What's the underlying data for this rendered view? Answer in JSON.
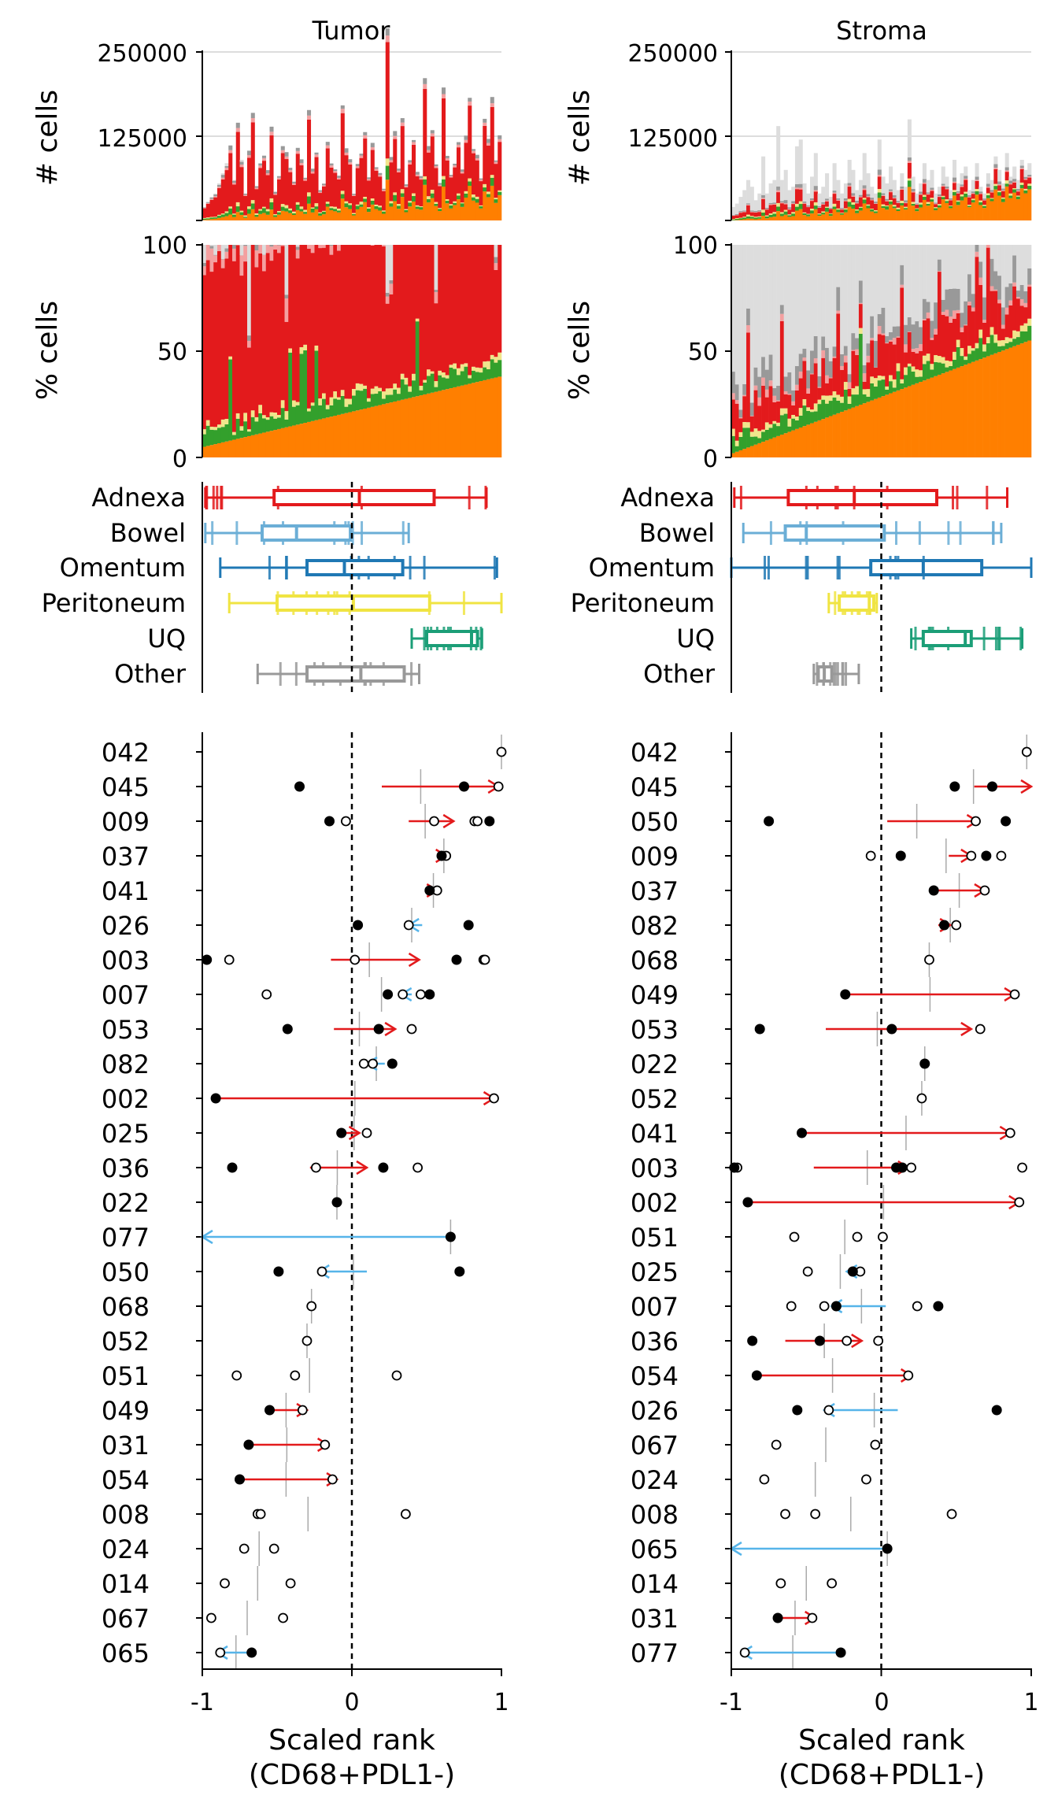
{
  "panels": [
    {
      "title": "Tumor"
    },
    {
      "title": "Stroma"
    }
  ],
  "colors": {
    "Adnexa": "#e31a1c",
    "Bowel": "#6baed6",
    "Omentum": "#1f78b4",
    "Peritoneum": "#f0e442",
    "UQ": "#1b9e77",
    "Other": "#999999",
    "bar_orange": "#ff7f00",
    "bar_green": "#33a02c",
    "bar_yellow": "#f0e68c",
    "bar_red": "#e31a1c",
    "bar_pink": "#f4a0a0",
    "bar_darkgray": "#999999",
    "bar_lightgray": "#dddddd",
    "arrow_up": "#e31a1c",
    "arrow_down": "#56b4e9"
  },
  "chart_data": [
    {
      "type": "bar",
      "panel": "Tumor",
      "ylabel": "# cells",
      "ylim": [
        0,
        250000
      ],
      "yticks": [
        "250000",
        "125000"
      ],
      "n_bars": 80,
      "note_values": "stacked bar counts per sample; ordered by % orange",
      "max_values": [
        20000,
        28000,
        35000,
        40000,
        55000,
        70000,
        85000,
        110000,
        60000,
        145000,
        90000,
        40000,
        100000,
        160000,
        50000,
        85000,
        95000,
        70000,
        130000,
        40000,
        65000,
        105000,
        95000,
        75000,
        55000,
        100000,
        85000,
        60000,
        150000,
        70000,
        95000,
        40000,
        50000,
        110000,
        80000,
        70000,
        60000,
        160000,
        95000,
        80000,
        35000,
        75000,
        90000,
        120000,
        55000,
        100000,
        70000,
        60000,
        40000,
        240000,
        80000,
        110000,
        65000,
        130000,
        45000,
        75000,
        100000,
        60000,
        55000,
        180000,
        90000,
        110000,
        70000,
        45000,
        160000,
        80000,
        55000,
        70000,
        95000,
        60000,
        100000,
        150000,
        85000,
        75000,
        50000,
        120000,
        95000,
        140000,
        70000,
        100000
      ]
    },
    {
      "type": "bar",
      "panel": "Stroma",
      "ylabel": "# cells",
      "ylim": [
        0,
        250000
      ],
      "yticks": [
        "250000",
        "125000"
      ],
      "n_bars": 80,
      "max_values": [
        20000,
        25000,
        35000,
        45000,
        60000,
        50000,
        30000,
        40000,
        95000,
        40000,
        55000,
        60000,
        140000,
        60000,
        75000,
        45000,
        50000,
        110000,
        120000,
        55000,
        40000,
        65000,
        100000,
        40000,
        50000,
        70000,
        35000,
        85000,
        60000,
        40000,
        55000,
        90000,
        75000,
        45000,
        60000,
        100000,
        70000,
        50000,
        40000,
        120000,
        65000,
        55000,
        80000,
        60000,
        45000,
        70000,
        50000,
        150000,
        65000,
        40000,
        55000,
        85000,
        60000,
        75000,
        40000,
        50000,
        80000,
        65000,
        45000,
        90000,
        55000,
        70000,
        80000,
        45000,
        60000,
        85000,
        50000,
        40000,
        70000,
        60000,
        95000,
        75000,
        55000,
        100000,
        65000,
        80000,
        60000,
        90000,
        75000,
        85000
      ]
    },
    {
      "type": "bar",
      "panel": "Tumor",
      "ylabel": "% cells",
      "ylim": [
        0,
        100
      ],
      "yticks": [
        "100",
        "50",
        "0"
      ],
      "n_bars": 80,
      "orange_pct_start": 5,
      "orange_pct_end": 38,
      "red_pct_mean": 75
    },
    {
      "type": "bar",
      "panel": "Stroma",
      "ylabel": "% cells",
      "ylim": [
        0,
        100
      ],
      "yticks": [
        "100",
        "50",
        "0"
      ],
      "n_bars": 80,
      "orange_pct_start": 2,
      "orange_pct_end": 55,
      "red_pct_mean": 12
    },
    {
      "type": "box",
      "panel": "Tumor",
      "categories": [
        "Adnexa",
        "Bowel",
        "Omentum",
        "Peritoneum",
        "UQ",
        "Other"
      ],
      "xlim": [
        -1,
        1
      ],
      "boxes": [
        {
          "name": "Adnexa",
          "whisker_low": -0.98,
          "q1": -0.52,
          "median": 0.05,
          "q3": 0.55,
          "whisker_high": 0.9
        },
        {
          "name": "Bowel",
          "whisker_low": -0.98,
          "q1": -0.6,
          "median": -0.37,
          "q3": -0.01,
          "whisker_high": 0.38
        },
        {
          "name": "Omentum",
          "whisker_low": -0.88,
          "q1": -0.3,
          "median": -0.05,
          "q3": 0.34,
          "whisker_high": 0.97
        },
        {
          "name": "Peritoneum",
          "whisker_low": -0.82,
          "q1": -0.5,
          "median": 0.01,
          "q3": 0.52,
          "whisker_high": 1.0
        },
        {
          "name": "UQ",
          "whisker_low": 0.4,
          "q1": 0.5,
          "median": 0.8,
          "q3": 0.84,
          "whisker_high": 0.87
        },
        {
          "name": "Other",
          "whisker_low": -0.63,
          "q1": -0.3,
          "median": 0.06,
          "q3": 0.35,
          "whisker_high": 0.45
        }
      ]
    },
    {
      "type": "box",
      "panel": "Stroma",
      "categories": [
        "Adnexa",
        "Bowel",
        "Omentum",
        "Peritoneum",
        "UQ",
        "Other"
      ],
      "xlim": [
        -1,
        1
      ],
      "boxes": [
        {
          "name": "Adnexa",
          "whisker_low": -0.98,
          "q1": -0.62,
          "median": -0.18,
          "q3": 0.37,
          "whisker_high": 0.84
        },
        {
          "name": "Bowel",
          "whisker_low": -0.92,
          "q1": -0.64,
          "median": -0.5,
          "q3": 0.02,
          "whisker_high": 0.8
        },
        {
          "name": "Omentum",
          "whisker_low": -1.0,
          "q1": -0.07,
          "median": 0.28,
          "q3": 0.67,
          "whisker_high": 1.0
        },
        {
          "name": "Peritoneum",
          "whisker_low": -0.35,
          "q1": -0.28,
          "median": -0.08,
          "q3": -0.05,
          "whisker_high": -0.03
        },
        {
          "name": "UQ",
          "whisker_low": 0.2,
          "q1": 0.28,
          "median": 0.56,
          "q3": 0.6,
          "whisker_high": 0.94
        },
        {
          "name": "Other",
          "whisker_low": -0.45,
          "q1": -0.42,
          "median": -0.38,
          "q3": -0.33,
          "whisker_high": -0.15
        }
      ]
    },
    {
      "type": "scatter",
      "panel": "Tumor",
      "xlabel": "Scaled rank",
      "xlabel2": "(CD68+PDL1-)",
      "xlim": [
        -1,
        1
      ],
      "xticks": [
        "-1",
        "0",
        "1"
      ],
      "patients": [
        {
          "id": "042",
          "open": [
            1.0
          ],
          "filled": [],
          "arrow": null
        },
        {
          "id": "045",
          "open": [
            0.98
          ],
          "filled": [
            -0.35,
            0.75
          ],
          "arrow": [
            0.2,
            0.98,
            "up"
          ]
        },
        {
          "id": "009",
          "open": [
            -0.04,
            0.55,
            0.82,
            0.84
          ],
          "filled": [
            -0.15,
            0.92
          ],
          "arrow": [
            0.38,
            0.68,
            "up"
          ]
        },
        {
          "id": "037",
          "open": [
            0.63
          ],
          "filled": [
            0.6
          ],
          "arrow": [
            0.6,
            0.63,
            "up"
          ]
        },
        {
          "id": "041",
          "open": [
            0.57
          ],
          "filled": [
            0.52
          ],
          "arrow": [
            0.52,
            0.57,
            "up"
          ]
        },
        {
          "id": "026",
          "open": [
            0.38
          ],
          "filled": [
            0.04,
            0.78
          ],
          "arrow": [
            0.47,
            0.38,
            "down"
          ]
        },
        {
          "id": "003",
          "open": [
            -0.82,
            0.02,
            0.88,
            0.89
          ],
          "filled": [
            -0.97,
            0.7
          ],
          "arrow": [
            -0.14,
            0.45,
            "up"
          ]
        },
        {
          "id": "007",
          "open": [
            -0.57,
            0.46,
            0.34
          ],
          "filled": [
            0.24,
            0.52
          ],
          "arrow": [
            0.4,
            0.33,
            "down"
          ]
        },
        {
          "id": "053",
          "open": [
            0.4
          ],
          "filled": [
            -0.43,
            0.18
          ],
          "arrow": [
            -0.12,
            0.29,
            "up"
          ]
        },
        {
          "id": "082",
          "open": [
            0.08,
            0.14
          ],
          "filled": [
            0.27
          ],
          "arrow": [
            0.22,
            0.1,
            "down"
          ]
        },
        {
          "id": "002",
          "open": [
            0.95
          ],
          "filled": [
            -0.91
          ],
          "arrow": [
            -0.91,
            0.95,
            "up"
          ]
        },
        {
          "id": "025",
          "open": [
            0.1
          ],
          "filled": [
            -0.07
          ],
          "arrow": [
            -0.07,
            0.05,
            "up"
          ]
        },
        {
          "id": "036",
          "open": [
            -0.24,
            0.44
          ],
          "filled": [
            -0.8,
            0.21
          ],
          "arrow": [
            -0.28,
            0.1,
            "up"
          ]
        },
        {
          "id": "022",
          "open": [],
          "filled": [
            -0.1
          ],
          "arrow": null
        },
        {
          "id": "077",
          "open": [],
          "filled": [
            0.66
          ],
          "arrow": [
            0.66,
            -1.0,
            "down"
          ]
        },
        {
          "id": "050",
          "open": [
            -0.2
          ],
          "filled": [
            -0.49,
            0.72
          ],
          "arrow": [
            0.1,
            -0.22,
            "down"
          ]
        },
        {
          "id": "068",
          "open": [
            -0.27
          ],
          "filled": [],
          "arrow": null
        },
        {
          "id": "052",
          "open": [
            -0.3
          ],
          "filled": [],
          "arrow": null
        },
        {
          "id": "051",
          "open": [
            -0.77,
            -0.38,
            0.3
          ],
          "filled": [],
          "arrow": null
        },
        {
          "id": "049",
          "open": [
            -0.33
          ],
          "filled": [
            -0.55
          ],
          "arrow": [
            -0.55,
            -0.3,
            "up"
          ]
        },
        {
          "id": "031",
          "open": [
            -0.18
          ],
          "filled": [
            -0.69
          ],
          "arrow": [
            -0.69,
            -0.16,
            "up"
          ]
        },
        {
          "id": "054",
          "open": [
            -0.13
          ],
          "filled": [
            -0.75
          ],
          "arrow": [
            -0.75,
            -0.1,
            "up"
          ]
        },
        {
          "id": "008",
          "open": [
            -0.63,
            -0.61,
            0.36
          ],
          "filled": [],
          "arrow": null
        },
        {
          "id": "024",
          "open": [
            -0.72,
            -0.52
          ],
          "filled": [],
          "arrow": null
        },
        {
          "id": "014",
          "open": [
            -0.85,
            -0.41
          ],
          "filled": [],
          "arrow": null
        },
        {
          "id": "067",
          "open": [
            -0.94,
            -0.46
          ],
          "filled": [],
          "arrow": null
        },
        {
          "id": "065",
          "open": [
            -0.88
          ],
          "filled": [
            -0.67
          ],
          "arrow": [
            -0.67,
            -0.9,
            "down"
          ]
        }
      ]
    },
    {
      "type": "scatter",
      "panel": "Stroma",
      "xlabel": "Scaled rank",
      "xlabel2": "(CD68+PDL1-)",
      "xlim": [
        -1,
        1
      ],
      "xticks": [
        "-1",
        "0",
        "1"
      ],
      "patients": [
        {
          "id": "042",
          "open": [
            0.97
          ],
          "filled": [],
          "arrow": null
        },
        {
          "id": "045",
          "open": [],
          "filled": [
            0.49,
            0.74
          ],
          "arrow": [
            0.62,
            1.0,
            "up"
          ]
        },
        {
          "id": "050",
          "open": [
            0.63
          ],
          "filled": [
            -0.75,
            0.83
          ],
          "arrow": [
            0.04,
            0.64,
            "up"
          ]
        },
        {
          "id": "009",
          "open": [
            -0.07,
            0.6,
            0.8
          ],
          "filled": [
            0.13,
            0.7
          ],
          "arrow": [
            0.45,
            0.6,
            "up"
          ]
        },
        {
          "id": "037",
          "open": [
            0.69
          ],
          "filled": [
            0.35
          ],
          "arrow": [
            0.35,
            0.69,
            "up"
          ]
        },
        {
          "id": "082",
          "open": [
            0.5
          ],
          "filled": [
            0.42
          ],
          "arrow": [
            0.38,
            0.46,
            "up"
          ]
        },
        {
          "id": "068",
          "open": [
            0.32
          ],
          "filled": [],
          "arrow": null
        },
        {
          "id": "049",
          "open": [
            0.89
          ],
          "filled": [
            -0.24
          ],
          "arrow": [
            -0.24,
            0.89,
            "up"
          ]
        },
        {
          "id": "053",
          "open": [
            0.66
          ],
          "filled": [
            -0.81,
            0.07
          ],
          "arrow": [
            -0.37,
            0.6,
            "up"
          ]
        },
        {
          "id": "022",
          "open": [],
          "filled": [
            0.29
          ],
          "arrow": null
        },
        {
          "id": "052",
          "open": [
            0.27
          ],
          "filled": [],
          "arrow": null
        },
        {
          "id": "041",
          "open": [
            0.86
          ],
          "filled": [
            -0.53
          ],
          "arrow": [
            -0.53,
            0.86,
            "up"
          ]
        },
        {
          "id": "003",
          "open": [
            -0.96,
            0.2,
            0.94
          ],
          "filled": [
            -0.98,
            0.1,
            0.14
          ],
          "arrow": [
            -0.45,
            0.18,
            "up"
          ]
        },
        {
          "id": "002",
          "open": [
            0.92
          ],
          "filled": [
            -0.89
          ],
          "arrow": [
            -0.89,
            0.92,
            "up"
          ]
        },
        {
          "id": "051",
          "open": [
            -0.58,
            -0.16,
            0.01
          ],
          "filled": [],
          "arrow": null
        },
        {
          "id": "025",
          "open": [
            -0.49,
            -0.14
          ],
          "filled": [
            -0.19
          ],
          "arrow": [
            -0.15,
            -0.23,
            "down"
          ]
        },
        {
          "id": "007",
          "open": [
            -0.6,
            -0.38,
            0.24
          ],
          "filled": [
            -0.3,
            0.38
          ],
          "arrow": [
            0.03,
            -0.33,
            "down"
          ]
        },
        {
          "id": "036",
          "open": [
            -0.23,
            -0.02
          ],
          "filled": [
            -0.86,
            -0.41
          ],
          "arrow": [
            -0.64,
            -0.13,
            "up"
          ]
        },
        {
          "id": "054",
          "open": [
            0.18
          ],
          "filled": [
            -0.83
          ],
          "arrow": [
            -0.83,
            0.2,
            "up"
          ]
        },
        {
          "id": "026",
          "open": [
            -0.35
          ],
          "filled": [
            -0.56,
            0.77
          ],
          "arrow": [
            0.11,
            -0.38,
            "down"
          ]
        },
        {
          "id": "067",
          "open": [
            -0.7,
            -0.04
          ],
          "filled": [],
          "arrow": null
        },
        {
          "id": "024",
          "open": [
            -0.78,
            -0.1
          ],
          "filled": [],
          "arrow": null
        },
        {
          "id": "008",
          "open": [
            -0.64,
            -0.44,
            0.47
          ],
          "filled": [],
          "arrow": null
        },
        {
          "id": "065",
          "open": [],
          "filled": [
            0.04
          ],
          "arrow": [
            0.04,
            -1.0,
            "down"
          ]
        },
        {
          "id": "014",
          "open": [
            -0.67,
            -0.33
          ],
          "filled": [],
          "arrow": null
        },
        {
          "id": "031",
          "open": [
            -0.46
          ],
          "filled": [
            -0.69
          ],
          "arrow": [
            -0.69,
            -0.44,
            "up"
          ]
        },
        {
          "id": "077",
          "open": [
            -0.91
          ],
          "filled": [
            -0.27
          ],
          "arrow": [
            -0.27,
            -0.93,
            "down"
          ]
        }
      ]
    }
  ]
}
